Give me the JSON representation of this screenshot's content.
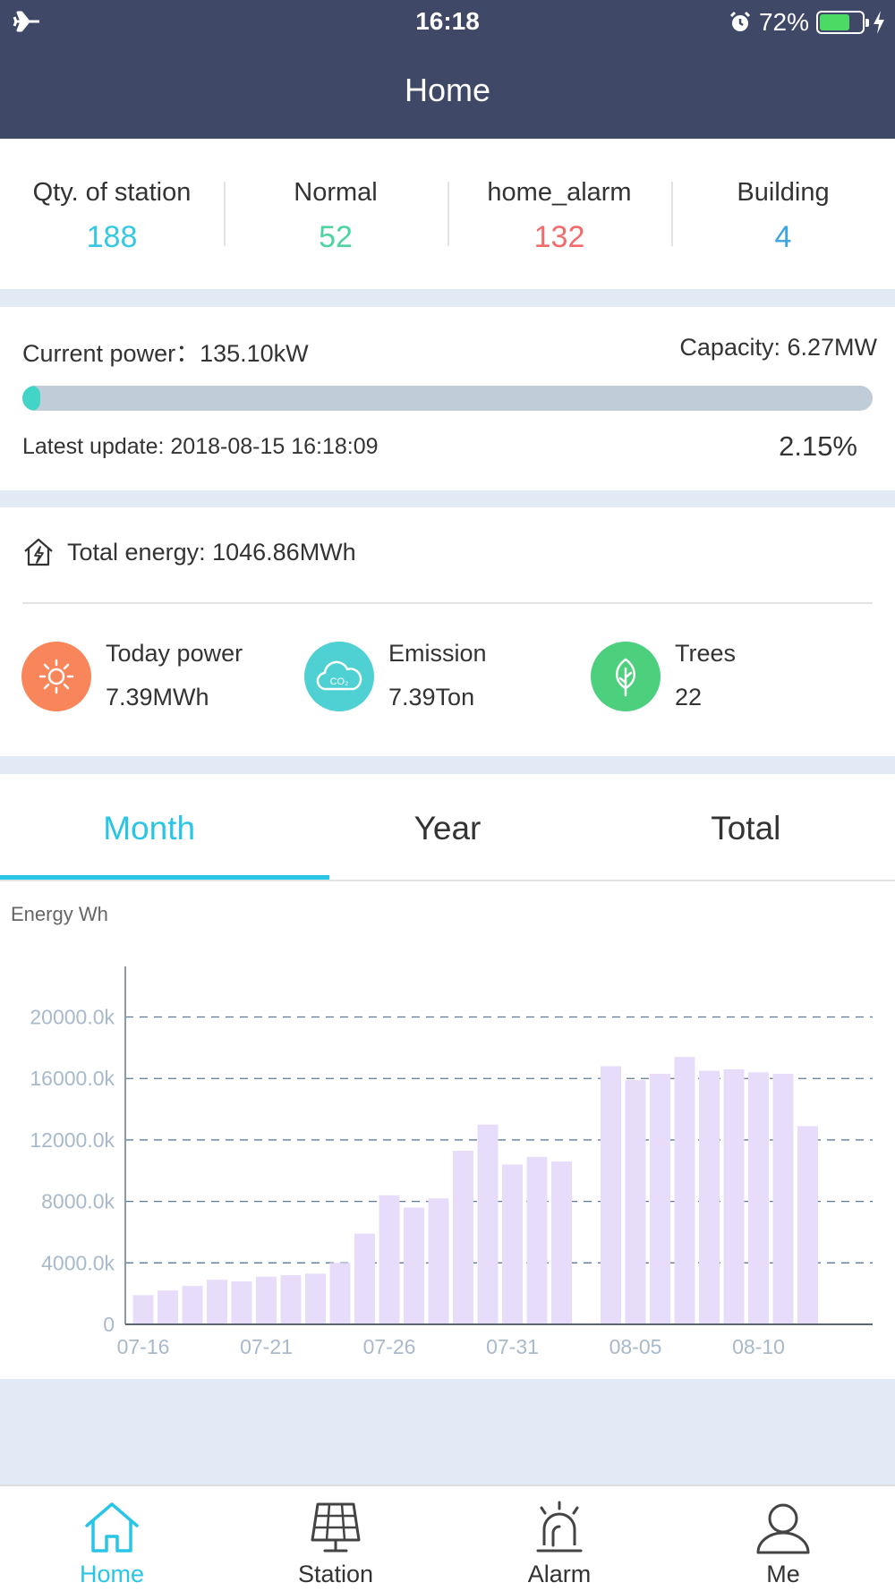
{
  "status_bar": {
    "time": "16:18",
    "battery_percent": "72%",
    "battery_level": 0.72,
    "icons": [
      "airplane-icon",
      "alarm-clock-icon",
      "battery-icon",
      "charging-bolt-icon"
    ]
  },
  "header": {
    "title": "Home"
  },
  "stats": [
    {
      "label": "Qty. of station",
      "value": "188",
      "color": "#35c8e5"
    },
    {
      "label": "Normal",
      "value": "52",
      "color": "#4ed3a0"
    },
    {
      "label": "home_alarm",
      "value": "132",
      "color": "#f26c6c"
    },
    {
      "label": "Building",
      "value": "4",
      "color": "#3aa3e3"
    }
  ],
  "power": {
    "current": "Current power：135.10kW",
    "capacity": "Capacity: 6.27MW",
    "progress_fraction": 0.0215,
    "update": "Latest update: 2018-08-15 16:18:09",
    "percent": "2.15%"
  },
  "energy": {
    "total": "Total energy: 1046.86MWh",
    "metrics": [
      {
        "label": "Today power",
        "value": "7.39MWh",
        "icon": "sun-icon",
        "color": "#f9865a"
      },
      {
        "label": "Emission",
        "value": "7.39Ton",
        "icon": "co2-cloud-icon",
        "color": "#4fd0d3"
      },
      {
        "label": "Trees",
        "value": "22",
        "icon": "leaf-icon",
        "color": "#4cd07d"
      }
    ]
  },
  "tabs": [
    {
      "label": "Month",
      "active": true
    },
    {
      "label": "Year",
      "active": false
    },
    {
      "label": "Total",
      "active": false
    }
  ],
  "chart_data": {
    "type": "bar",
    "ylabel": "Energy Wh",
    "ylim": [
      0,
      23000
    ],
    "yticks": [
      0,
      4000,
      8000,
      12000,
      16000,
      20000
    ],
    "ytick_labels": [
      "0",
      "4000.0k",
      "8000.0k",
      "12000.0k",
      "16000.0k",
      "20000.0k"
    ],
    "grid": "dashed-horizontal",
    "bar_color": "#e8dcfb",
    "categories": [
      "07-16",
      "07-17",
      "07-18",
      "07-19",
      "07-20",
      "07-21",
      "07-22",
      "07-23",
      "07-24",
      "07-25",
      "07-26",
      "07-27",
      "07-28",
      "07-29",
      "07-30",
      "07-31",
      "08-01",
      "08-02",
      "08-03",
      "08-04",
      "08-05",
      "08-06",
      "08-07",
      "08-08",
      "08-09",
      "08-10",
      "08-11",
      "08-12",
      "08-13",
      "08-14"
    ],
    "x_tick_labels": [
      "07-16",
      "07-21",
      "07-26",
      "07-31",
      "08-05",
      "08-10"
    ],
    "values": [
      1900,
      2200,
      2500,
      2900,
      2800,
      3100,
      3200,
      3300,
      4000,
      5900,
      8400,
      7600,
      8200,
      11300,
      13000,
      10400,
      10900,
      10600,
      0,
      16800,
      15900,
      16300,
      17400,
      16500,
      16600,
      16400,
      16300,
      12900,
      null,
      null
    ]
  },
  "nav": [
    {
      "label": "Home",
      "icon": "home-icon",
      "active": true
    },
    {
      "label": "Station",
      "icon": "solar-panel-icon",
      "active": false
    },
    {
      "label": "Alarm",
      "icon": "siren-icon",
      "active": false
    },
    {
      "label": "Me",
      "icon": "user-icon",
      "active": false
    }
  ]
}
